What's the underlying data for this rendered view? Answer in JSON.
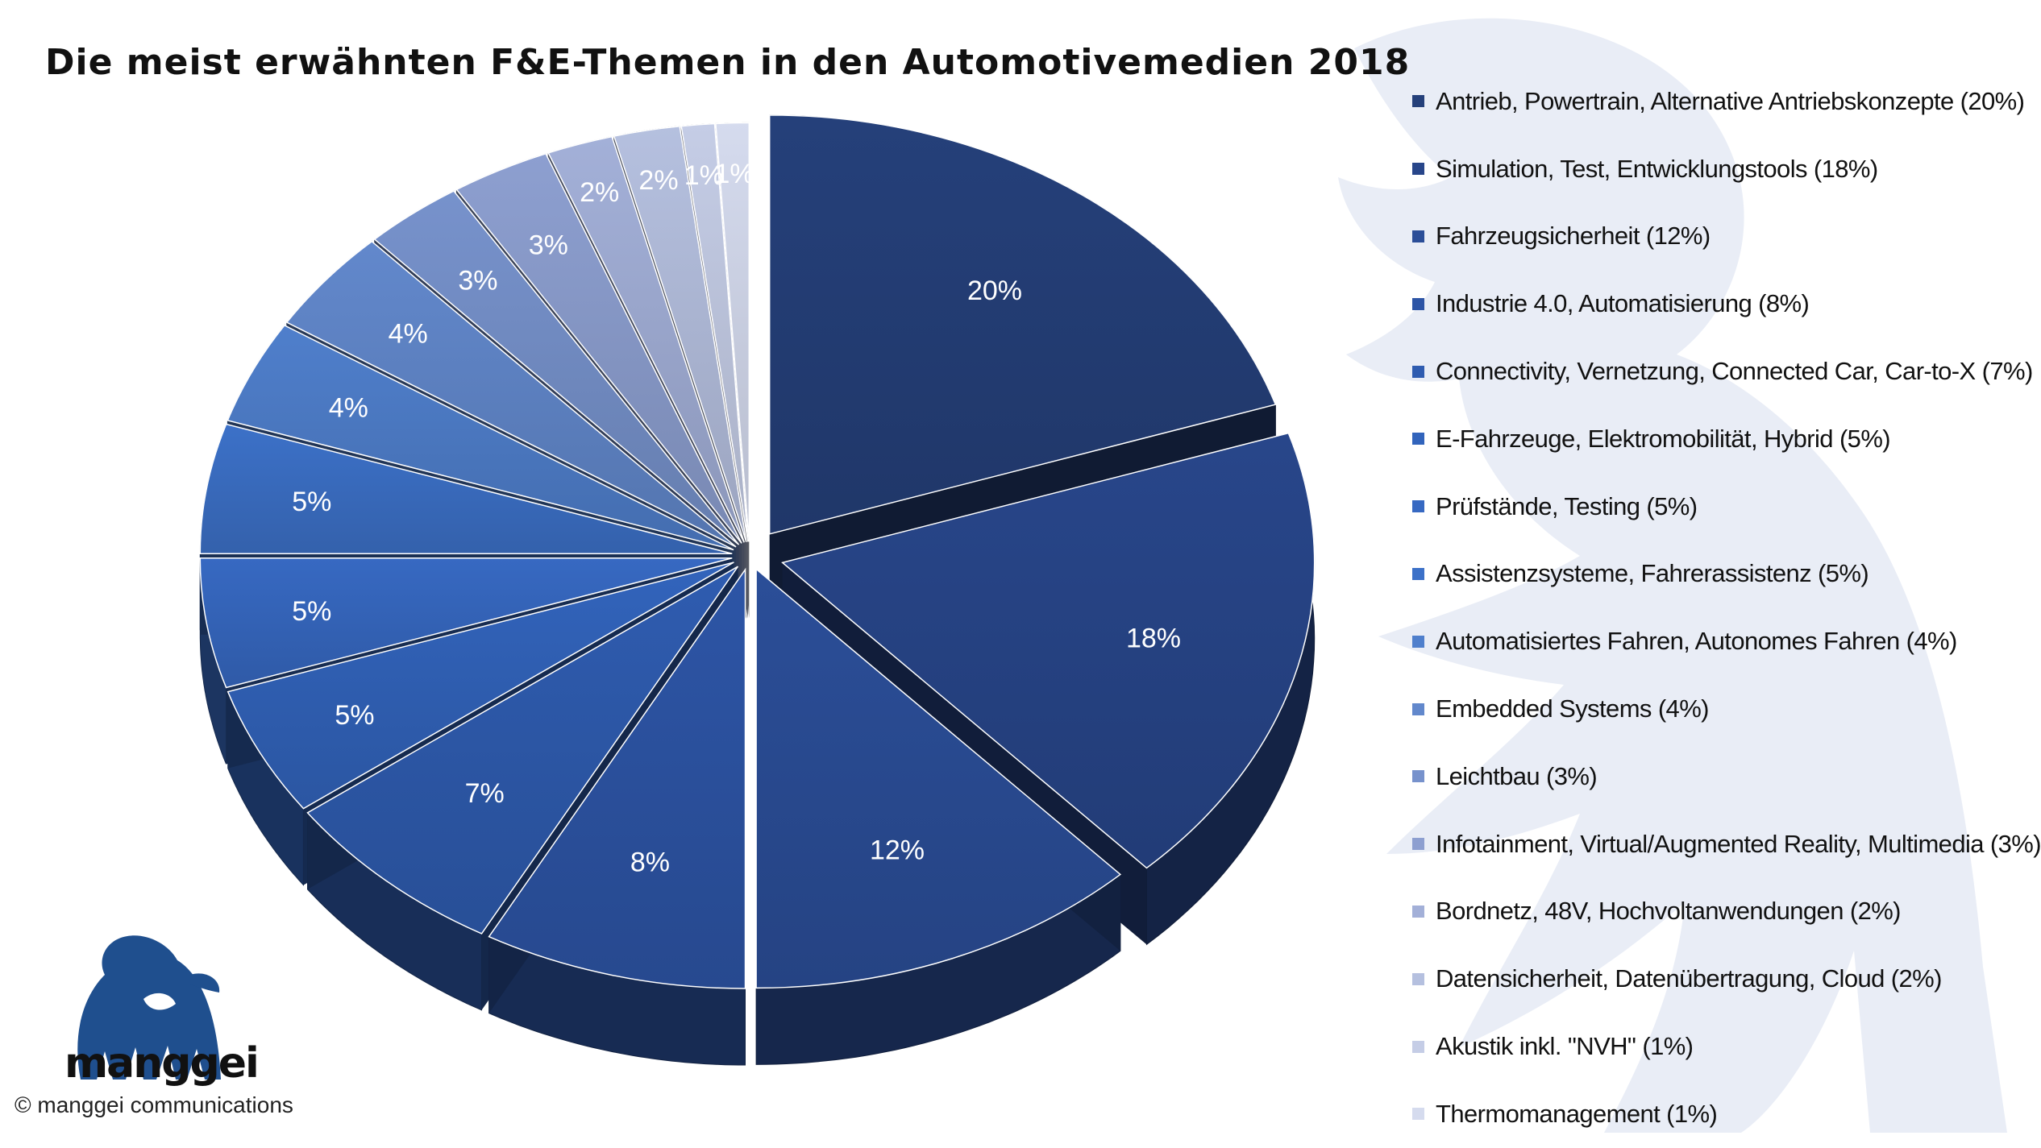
{
  "chart_data": {
    "type": "pie",
    "title": "Die meist erwähnten F&E-Themen in den Automotivemedien 2018",
    "categories": [
      "Antrieb, Powertrain, Alternative Antriebskonzepte (20%)",
      "Simulation, Test,  Entwicklungstools (18%)",
      "Fahrzeugsicherheit (12%)",
      "Industrie 4.0, Automatisierung (8%)",
      "Connectivity, Vernetzung, Connected Car, Car-to-X (7%)",
      "E-Fahrzeuge,  Elektromobilität, Hybrid (5%)",
      "Prüfstände, Testing  (5%)",
      "Assistenzsysteme,  Fahrerassistenz  (5%)",
      "Automatisiertes Fahren, Autonomes Fahren (4%)",
      "Embedded  Systems  (4%)",
      "Leichtbau (3%)",
      "Infotainment, Virtual/Augmented Reality, Multimedia (3%)",
      "Bordnetz, 48V, Hochvoltanwendungen (2%)",
      "Datensicherheit, Datenübertragung, Cloud (2%)",
      "Akustik inkl. \"NVH\" (1%)",
      "Thermomanagement  (1%)"
    ],
    "values": [
      20,
      18,
      12,
      8,
      7,
      5,
      5,
      5,
      4,
      4,
      3,
      3,
      2,
      2,
      1,
      1
    ],
    "data_labels": [
      "20%",
      "18%",
      "12%",
      "8%",
      "7%",
      "5%",
      "5%",
      "5%",
      "4%",
      "4%",
      "3%",
      "3%",
      "2%",
      "2%",
      "1%",
      "1%"
    ],
    "colors": [
      "#25407a",
      "#28468a",
      "#2b4e98",
      "#2d55a6",
      "#2f5cb0",
      "#3264bc",
      "#3769c2",
      "#3c71c8",
      "#4f7fcc",
      "#6288cc",
      "#7792cc",
      "#8d9fd0",
      "#a3b0d8",
      "#b5c0df",
      "#c5cde6",
      "#d5dbee"
    ],
    "legend_position": "right",
    "style": "exploded-3d"
  },
  "branding": {
    "logo_text": "manggei",
    "copyright": "© manggei communications"
  }
}
